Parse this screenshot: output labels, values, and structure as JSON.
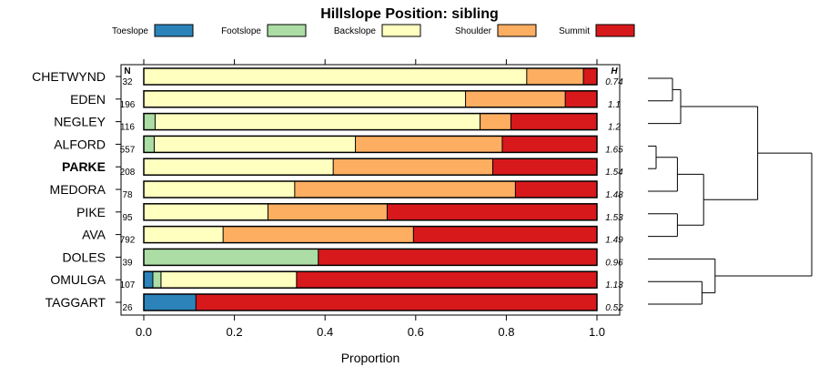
{
  "chart_data": {
    "type": "bar",
    "stacked": true,
    "orientation": "horizontal",
    "title": "Hillslope Position: sibling",
    "xlabel": "Proportion",
    "ylabel": "",
    "xlim": [
      0,
      1
    ],
    "xticks": [
      "0.0",
      "0.2",
      "0.4",
      "0.6",
      "0.8",
      "1.0"
    ],
    "legend_position": "top",
    "n_header": "N",
    "h_header": "H",
    "highlight_category": "PARKE",
    "series": [
      {
        "name": "Toeslope",
        "color": "#2B83BA"
      },
      {
        "name": "Footslope",
        "color": "#ABDDA4"
      },
      {
        "name": "Backslope",
        "color": "#FFFFBF"
      },
      {
        "name": "Shoulder",
        "color": "#FDAE61"
      },
      {
        "name": "Summit",
        "color": "#D7191C"
      }
    ],
    "rows": [
      {
        "name": "CHETWYND",
        "n": "32",
        "h": "0.74",
        "values": [
          0,
          0,
          0.845,
          0.125,
          0.03
        ]
      },
      {
        "name": "EDEN",
        "n": "196",
        "h": "1.1",
        "values": [
          0,
          0,
          0.71,
          0.22,
          0.07
        ]
      },
      {
        "name": "NEGLEY",
        "n": "116",
        "h": "1.2",
        "values": [
          0,
          0.025,
          0.717,
          0.068,
          0.19
        ]
      },
      {
        "name": "ALFORD",
        "n": "557",
        "h": "1.65",
        "values": [
          0,
          0.023,
          0.444,
          0.324,
          0.209
        ]
      },
      {
        "name": "PARKE",
        "n": "208",
        "h": "1.54",
        "values": [
          0,
          0,
          0.418,
          0.352,
          0.23
        ]
      },
      {
        "name": "MEDORA",
        "n": "78",
        "h": "1.48",
        "values": [
          0,
          0,
          0.333,
          0.487,
          0.18
        ]
      },
      {
        "name": "PIKE",
        "n": "95",
        "h": "1.53",
        "values": [
          0,
          0,
          0.274,
          0.263,
          0.463
        ]
      },
      {
        "name": "AVA",
        "n": "792",
        "h": "1.49",
        "values": [
          0,
          0,
          0.175,
          0.42,
          0.405
        ]
      },
      {
        "name": "DOLES",
        "n": "39",
        "h": "0.96",
        "values": [
          0,
          0.385,
          0,
          0,
          0.615
        ]
      },
      {
        "name": "OMULGA",
        "n": "107",
        "h": "1.13",
        "values": [
          0.02,
          0.018,
          0.299,
          0,
          0.663
        ]
      },
      {
        "name": "TAGGART",
        "n": "26",
        "h": "0.52",
        "values": [
          0.115,
          0,
          0,
          0,
          0.885
        ]
      }
    ],
    "dendrogram": {
      "type": "hierarchical-clustering",
      "leaf_order": [
        "CHETWYND",
        "EDEN",
        "NEGLEY",
        "ALFORD",
        "PARKE",
        "MEDORA",
        "PIKE",
        "AVA",
        "DOLES",
        "OMULGA",
        "TAGGART"
      ],
      "merges": [
        {
          "a": "CHETWYND",
          "b": "EDEN",
          "h": 0.15
        },
        {
          "a": "m0",
          "b": "NEGLEY",
          "h": 0.2
        },
        {
          "a": "ALFORD",
          "b": "PARKE",
          "h": 0.05
        },
        {
          "a": "m2",
          "b": "MEDORA",
          "h": 0.18
        },
        {
          "a": "PIKE",
          "b": "AVA",
          "h": 0.18
        },
        {
          "a": "m3",
          "b": "m4",
          "h": 0.34
        },
        {
          "a": "m1",
          "b": "m5",
          "h": 0.67
        },
        {
          "a": "OMULGA",
          "b": "TAGGART",
          "h": 0.33
        },
        {
          "a": "DOLES",
          "b": "m7",
          "h": 0.41
        },
        {
          "a": "m6",
          "b": "m8",
          "h": 1.0
        }
      ]
    }
  }
}
